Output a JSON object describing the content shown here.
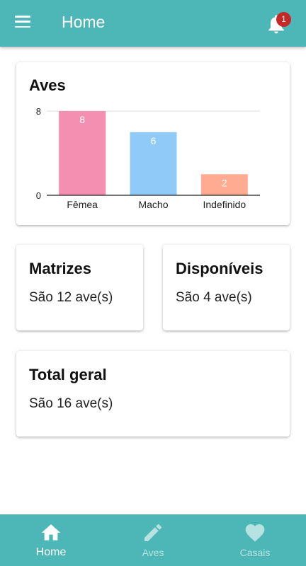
{
  "appbar": {
    "title": "Home",
    "notification_count": "1"
  },
  "chart_card": {
    "title": "Aves"
  },
  "chart_data": {
    "type": "bar",
    "categories": [
      "Fêmea",
      "Macho",
      "Indefinido"
    ],
    "values": [
      8,
      6,
      2
    ],
    "data_labels": [
      "8",
      "6",
      "2"
    ],
    "y_ticks": [
      "8",
      "0"
    ],
    "ylim": [
      0,
      8
    ],
    "colors": [
      "#F48FB1",
      "#90CAF9",
      "#FFAB91"
    ],
    "grid": true,
    "title": "Aves",
    "xlabel": "",
    "ylabel": ""
  },
  "matrizes": {
    "title": "Matrizes",
    "text": "São 12 ave(s)"
  },
  "disponiveis": {
    "title": "Disponíveis",
    "text": "São 4 ave(s)"
  },
  "total": {
    "title": "Total geral",
    "text": "São 16 ave(s)"
  },
  "bottom_nav": {
    "items": [
      {
        "label": "Home",
        "icon": "home-icon",
        "active": true
      },
      {
        "label": "Aves",
        "icon": "pencil-icon",
        "active": false
      },
      {
        "label": "Casais",
        "icon": "heart-icon",
        "active": false
      }
    ]
  },
  "colors": {
    "primary": "#4DB6B7",
    "badge": "#C62828"
  }
}
